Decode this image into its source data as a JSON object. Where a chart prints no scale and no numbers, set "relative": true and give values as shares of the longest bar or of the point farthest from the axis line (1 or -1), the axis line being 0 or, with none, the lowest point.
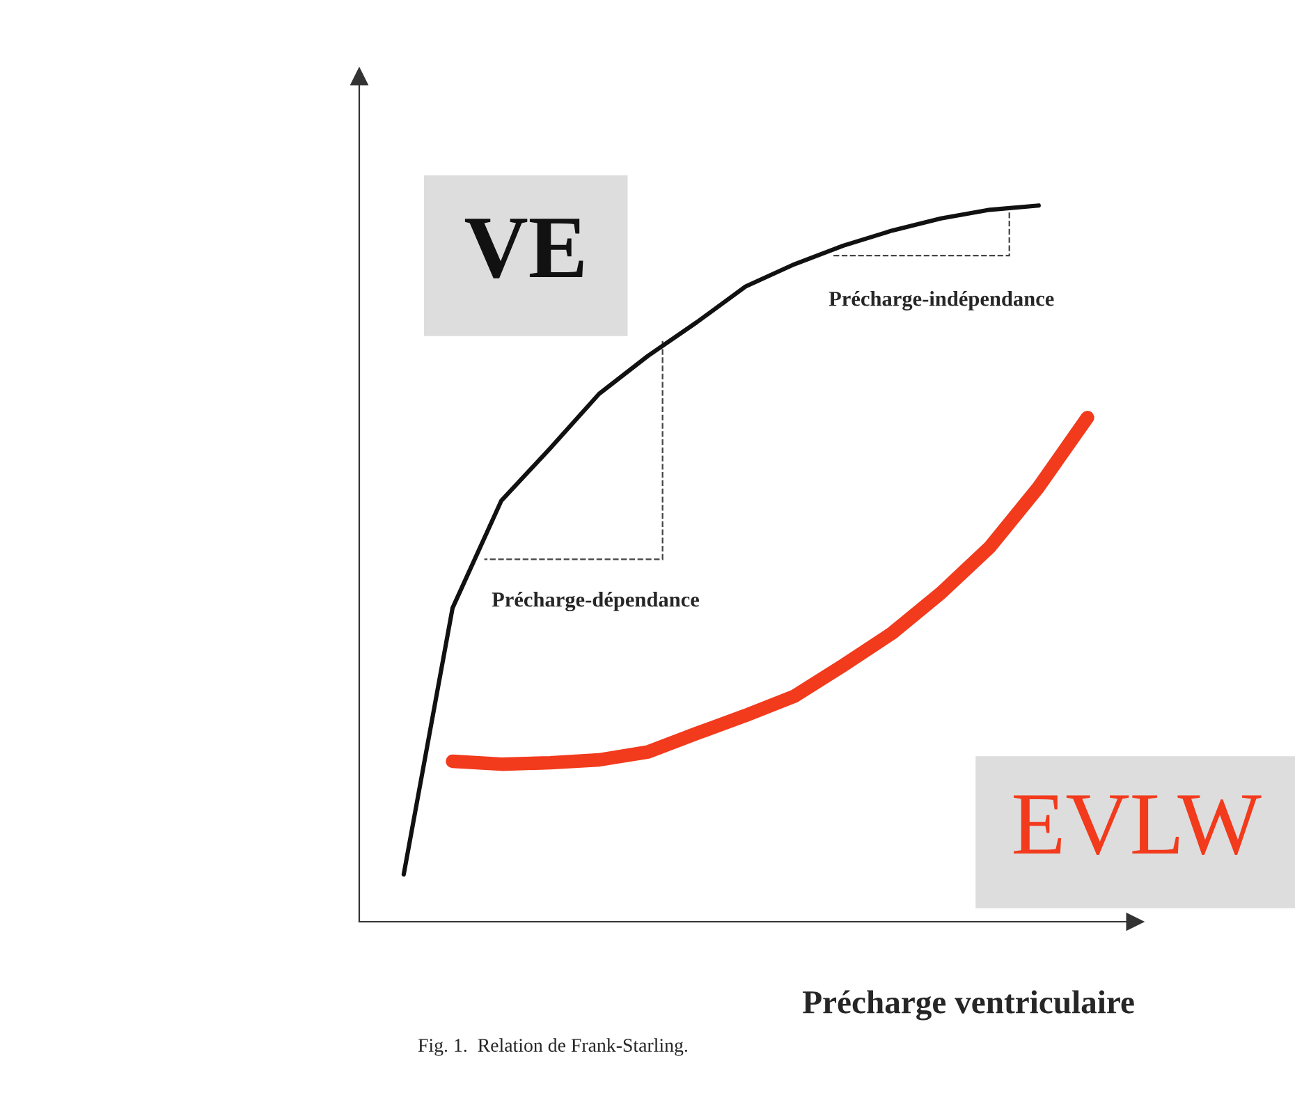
{
  "chart_data": {
    "type": "line",
    "relative": true,
    "xlabel": "Précharge ventriculaire",
    "annotations": [
      "Précharge-indépendance",
      "Précharge-dépendance",
      "Fig. 1.  Relation de Frank-Starling."
    ],
    "marker": "none",
    "line_style": "solid",
    "categories": [
      null,
      null,
      null,
      null,
      null,
      null,
      null,
      null,
      null,
      null,
      null,
      null,
      null,
      null,
      null
    ],
    "series": [
      {
        "name": "VE",
        "color": "#111111",
        "values": [
          0.066,
          0.438,
          0.588,
          0.661,
          0.737,
          0.79,
          0.837,
          0.887,
          0.918,
          0.944,
          0.965,
          0.982,
          0.994,
          1.0,
          null
        ]
      },
      {
        "name": "EVLW",
        "color": "#f23a1c",
        "values": [
          null,
          0.224,
          0.22,
          0.222,
          0.226,
          0.237,
          0.263,
          0.288,
          0.315,
          0.358,
          0.403,
          0.459,
          0.523,
          0.607,
          0.704
        ]
      }
    ]
  }
}
